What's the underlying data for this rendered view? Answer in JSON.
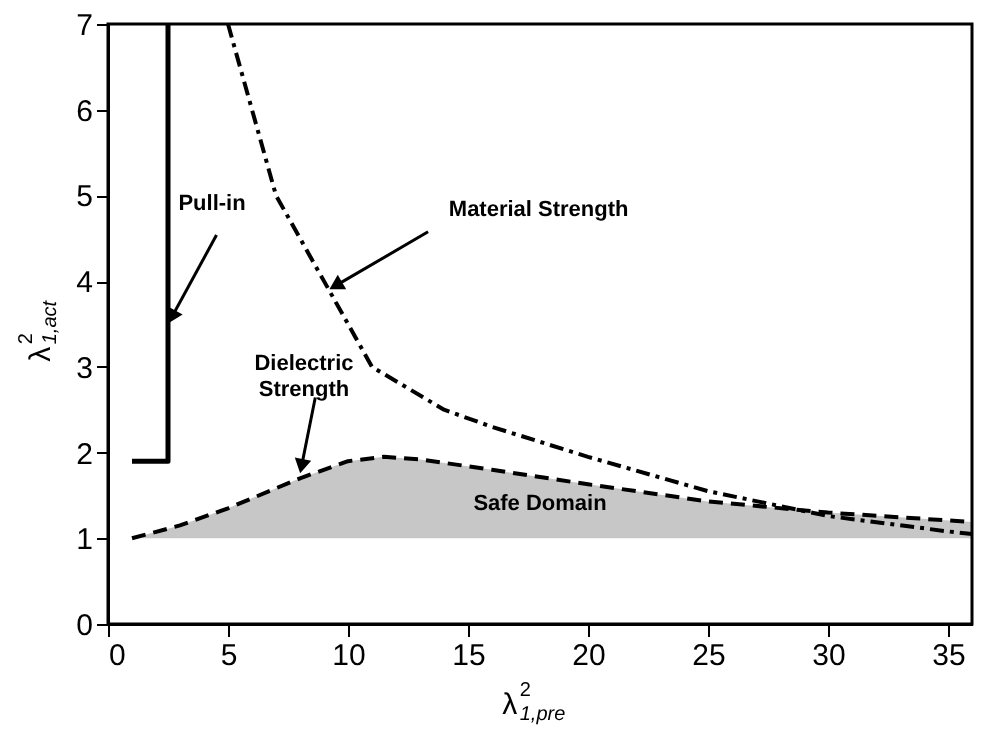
{
  "chart_data": {
    "type": "line",
    "xlabel": "λ$^{2}$$_{1,pre}$",
    "ylabel": "λ$^{2}$$_{1,act}$",
    "xlim": [
      0,
      36
    ],
    "ylim": [
      0,
      7
    ],
    "xticks": [
      0,
      5,
      10,
      15,
      20,
      25,
      30,
      35
    ],
    "yticks": [
      0,
      1,
      2,
      3,
      4,
      5,
      6,
      7
    ],
    "grid": false,
    "marker": "none",
    "series": [
      {
        "color": "#000000",
        "line_style": "solid",
        "x": [
          1,
          2.5,
          2.5
        ],
        "values": [
          1.9,
          1.9,
          7
        ]
      },
      {
        "color": "#000000",
        "line_style": "dashdot",
        "x": [
          5,
          6,
          7,
          9,
          11,
          14,
          16,
          20,
          25,
          30,
          35,
          36
        ],
        "values": [
          7,
          6,
          5,
          4,
          3,
          2.5,
          2.3,
          1.95,
          1.55,
          1.26,
          1.08,
          1.05
        ]
      },
      {
        "color": "#000000",
        "line_style": "dashed",
        "x": [
          1,
          3,
          5,
          8,
          10,
          11.5,
          13,
          16,
          20,
          25,
          30,
          36
        ],
        "values": [
          1.0,
          1.15,
          1.35,
          1.7,
          1.9,
          1.95,
          1.92,
          1.8,
          1.63,
          1.43,
          1.3,
          1.19
        ],
        "lower": [
          1,
          1,
          1,
          1,
          1,
          1,
          1,
          1,
          1,
          1,
          1,
          1
        ],
        "upper": [
          1.0,
          1.15,
          1.35,
          1.7,
          1.9,
          1.95,
          1.92,
          1.8,
          1.63,
          1.43,
          1.3,
          1.19
        ]
      }
    ],
    "annotations": [
      {
        "text": "Pull-in",
        "x": 2.5,
        "y": 3.5
      },
      {
        "text": "Material Strength",
        "x": 9.2,
        "y": 3.9
      },
      {
        "text": "Dielectric Strength",
        "x": 8,
        "y": 1.75
      },
      "Safe Domain"
    ]
  }
}
